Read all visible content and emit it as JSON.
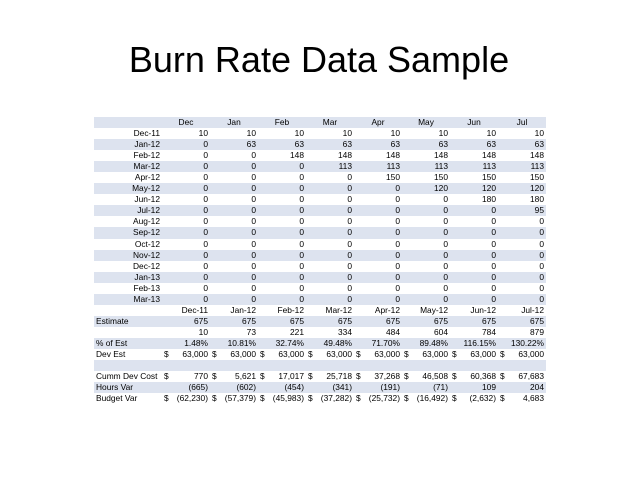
{
  "title": "Burn Rate Data Sample",
  "header_months": [
    "Dec",
    "Jan",
    "Feb",
    "Mar",
    "Apr",
    "May",
    "Jun",
    "Jul"
  ],
  "rows": [
    {
      "label": "Dec-11",
      "values": [
        "10",
        "10",
        "10",
        "10",
        "10",
        "10",
        "10",
        "10"
      ]
    },
    {
      "label": "Jan-12",
      "values": [
        "0",
        "63",
        "63",
        "63",
        "63",
        "63",
        "63",
        "63"
      ]
    },
    {
      "label": "Feb-12",
      "values": [
        "0",
        "0",
        "148",
        "148",
        "148",
        "148",
        "148",
        "148"
      ]
    },
    {
      "label": "Mar-12",
      "values": [
        "0",
        "0",
        "0",
        "113",
        "113",
        "113",
        "113",
        "113"
      ]
    },
    {
      "label": "Apr-12",
      "values": [
        "0",
        "0",
        "0",
        "0",
        "150",
        "150",
        "150",
        "150"
      ]
    },
    {
      "label": "May-12",
      "values": [
        "0",
        "0",
        "0",
        "0",
        "0",
        "120",
        "120",
        "120"
      ]
    },
    {
      "label": "Jun-12",
      "values": [
        "0",
        "0",
        "0",
        "0",
        "0",
        "0",
        "180",
        "180"
      ]
    },
    {
      "label": "Jul-12",
      "values": [
        "0",
        "0",
        "0",
        "0",
        "0",
        "0",
        "0",
        "95"
      ]
    },
    {
      "label": "Aug-12",
      "values": [
        "0",
        "0",
        "0",
        "0",
        "0",
        "0",
        "0",
        "0"
      ]
    },
    {
      "label": "Sep-12",
      "values": [
        "0",
        "0",
        "0",
        "0",
        "0",
        "0",
        "0",
        "0"
      ]
    },
    {
      "label": "Oct-12",
      "values": [
        "0",
        "0",
        "0",
        "0",
        "0",
        "0",
        "0",
        "0"
      ]
    },
    {
      "label": "Nov-12",
      "values": [
        "0",
        "0",
        "0",
        "0",
        "0",
        "0",
        "0",
        "0"
      ]
    },
    {
      "label": "Dec-12",
      "values": [
        "0",
        "0",
        "0",
        "0",
        "0",
        "0",
        "0",
        "0"
      ]
    },
    {
      "label": "Jan-13",
      "values": [
        "0",
        "0",
        "0",
        "0",
        "0",
        "0",
        "0",
        "0"
      ]
    },
    {
      "label": "Feb-13",
      "values": [
        "0",
        "0",
        "0",
        "0",
        "0",
        "0",
        "0",
        "0"
      ]
    },
    {
      "label": "Mar-13",
      "values": [
        "0",
        "0",
        "0",
        "0",
        "0",
        "0",
        "0",
        "0"
      ]
    }
  ],
  "date_header": [
    "Dec-11",
    "Jan-12",
    "Feb-12",
    "Mar-12",
    "Apr-12",
    "May-12",
    "Jun-12",
    "Jul-12"
  ],
  "estimate": {
    "label": "Estimate",
    "values": [
      "675",
      "675",
      "675",
      "675",
      "675",
      "675",
      "675",
      "675"
    ]
  },
  "cumulative": {
    "values": [
      "10",
      "73",
      "221",
      "334",
      "484",
      "604",
      "784",
      "879"
    ]
  },
  "pct_est": {
    "label": "% of Est",
    "values": [
      "1.48%",
      "10.81%",
      "32.74%",
      "49.48%",
      "71.70%",
      "89.48%",
      "116.15%",
      "130.22%"
    ]
  },
  "dev_est": {
    "label": "Dev Est",
    "symbol": "$",
    "values": [
      "63,000",
      "63,000",
      "63,000",
      "63,000",
      "63,000",
      "63,000",
      "63,000",
      "63,000"
    ]
  },
  "cumm_dev_cost": {
    "label": "Cumm Dev Cost",
    "symbol": "$",
    "values": [
      "770",
      "5,621",
      "17,017",
      "25,718",
      "37,268",
      "46,508",
      "60,368",
      "67,683"
    ]
  },
  "hours_var": {
    "label": "Hours Var",
    "values": [
      "(665)",
      "(602)",
      "(454)",
      "(341)",
      "(191)",
      "(71)",
      "109",
      "204"
    ]
  },
  "budget_var": {
    "label": "Budget Var",
    "symbol": "$",
    "values": [
      "(62,230)",
      "(57,379)",
      "(45,983)",
      "(37,282)",
      "(25,732)",
      "(16,492)",
      "(2,632)",
      "4,683"
    ]
  }
}
